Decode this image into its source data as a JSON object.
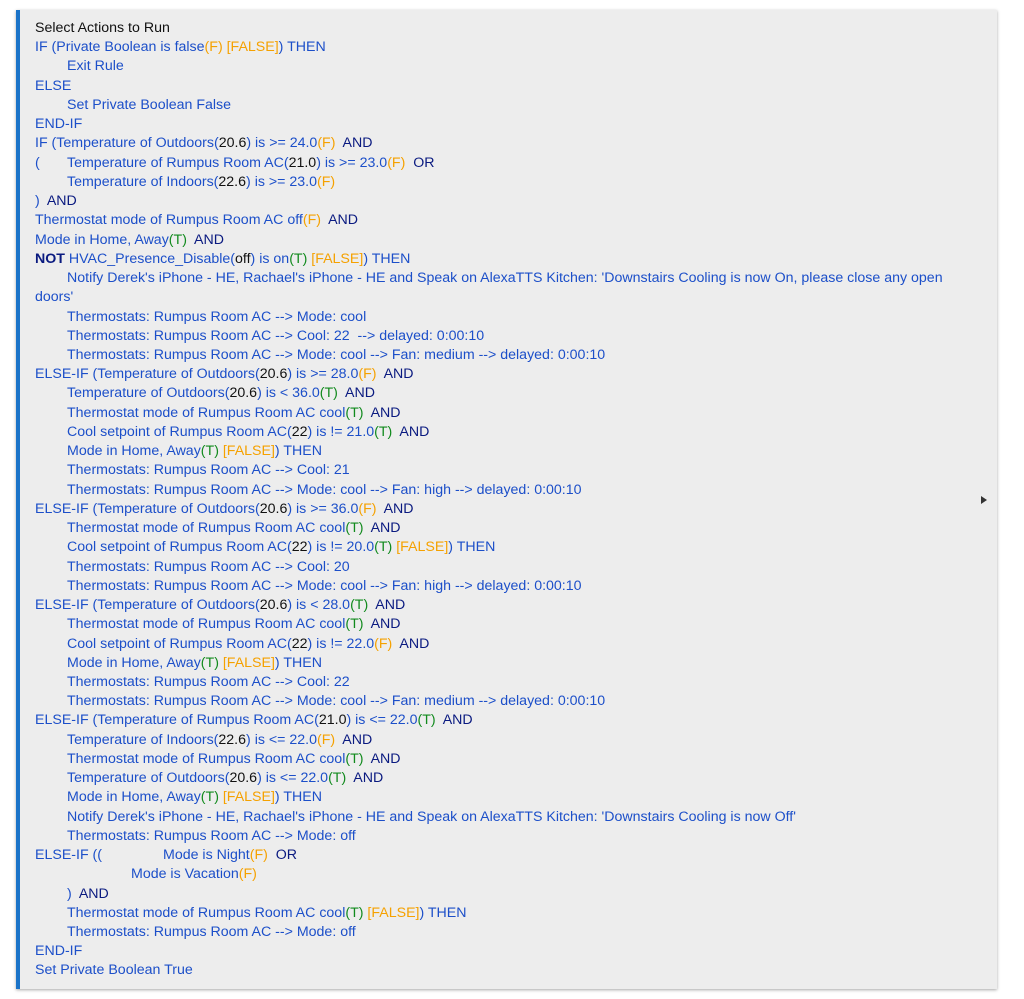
{
  "colors": {
    "blue": "#1c4fc9",
    "navy": "#0a1a80",
    "orange": "#f5a100",
    "green": "#118a1d",
    "black": "#111111",
    "accent": "#1a73c8"
  },
  "title": "Select Actions to Run",
  "lines": [
    [
      [
        "IF (Private Boolean is false",
        "b"
      ],
      [
        "(F)",
        "o"
      ],
      [
        " [FALSE]",
        "o"
      ],
      [
        ") THEN",
        "b"
      ]
    ],
    [
      [
        "\tExit Rule",
        "b"
      ]
    ],
    [
      [
        "ELSE",
        "b"
      ]
    ],
    [
      [
        "\tSet Private Boolean False",
        "b"
      ]
    ],
    [
      [
        "END-IF",
        "b"
      ]
    ],
    [
      [
        "IF (Temperature of Outdoors(",
        "b"
      ],
      [
        "20.6",
        "k"
      ],
      [
        ") is >= 24.0",
        "b"
      ],
      [
        "(F)",
        "o"
      ],
      [
        "  AND",
        "n"
      ]
    ],
    [
      [
        "(\tTemperature of Rumpus Room AC(",
        "b"
      ],
      [
        "21.0",
        "k"
      ],
      [
        ") is >= 23.0",
        "b"
      ],
      [
        "(F)",
        "o"
      ],
      [
        "  OR",
        "n"
      ]
    ],
    [
      [
        "\tTemperature of Indoors(",
        "b"
      ],
      [
        "22.6",
        "k"
      ],
      [
        ") is >= 23.0",
        "b"
      ],
      [
        "(F)",
        "o"
      ]
    ],
    [
      [
        ")",
        "b"
      ],
      [
        "  AND",
        "n"
      ]
    ],
    [
      [
        "Thermostat mode of Rumpus Room AC off",
        "b"
      ],
      [
        "(F)",
        "o"
      ],
      [
        "  AND",
        "n"
      ]
    ],
    [
      [
        "Mode in Home, Away",
        "b"
      ],
      [
        "(T)",
        "g"
      ],
      [
        "  AND",
        "n"
      ]
    ],
    [
      [
        "NOT",
        "n",
        "bold"
      ],
      [
        " HVAC_Presence_Disable(",
        "b"
      ],
      [
        "off",
        "k"
      ],
      [
        ") is on",
        "b"
      ],
      [
        "(T)",
        "g"
      ],
      [
        " [FALSE]",
        "o"
      ],
      [
        ") THEN",
        "b"
      ]
    ],
    [
      [
        "\tNotify Derek's iPhone - HE, Rachael's iPhone - HE and Speak on AlexaTTS Kitchen: 'Downstairs Cooling is now On, please close any open doors'",
        "b"
      ]
    ],
    [
      [
        "\tThermostats: Rumpus Room AC --> Mode: cool",
        "b"
      ]
    ],
    [
      [
        "\tThermostats: Rumpus Room AC --> Cool: 22  --> delayed: 0:00:10",
        "b"
      ]
    ],
    [
      [
        "\tThermostats: Rumpus Room AC --> Mode: cool --> Fan: medium --> delayed: 0:00:10",
        "b"
      ]
    ],
    [
      [
        "ELSE-IF (Temperature of Outdoors(",
        "b"
      ],
      [
        "20.6",
        "k"
      ],
      [
        ") is >= 28.0",
        "b"
      ],
      [
        "(F)",
        "o"
      ],
      [
        "  AND",
        "n"
      ]
    ],
    [
      [
        "\tTemperature of Outdoors(",
        "b"
      ],
      [
        "20.6",
        "k"
      ],
      [
        ") is < 36.0",
        "b"
      ],
      [
        "(T)",
        "g"
      ],
      [
        "  AND",
        "n"
      ]
    ],
    [
      [
        "\tThermostat mode of Rumpus Room AC cool",
        "b"
      ],
      [
        "(T)",
        "g"
      ],
      [
        "  AND",
        "n"
      ]
    ],
    [
      [
        "\tCool setpoint of Rumpus Room AC(",
        "b"
      ],
      [
        "22",
        "k"
      ],
      [
        ") is != 21.0",
        "b"
      ],
      [
        "(T)",
        "g"
      ],
      [
        "  AND",
        "n"
      ]
    ],
    [
      [
        "\tMode in Home, Away",
        "b"
      ],
      [
        "(T)",
        "g"
      ],
      [
        " [FALSE]",
        "o"
      ],
      [
        ") THEN",
        "b"
      ]
    ],
    [
      [
        "\tThermostats: Rumpus Room AC --> Cool: 21",
        "b"
      ]
    ],
    [
      [
        "\tThermostats: Rumpus Room AC --> Mode: cool --> Fan: high --> delayed: 0:00:10",
        "b"
      ]
    ],
    [
      [
        "ELSE-IF (Temperature of Outdoors(",
        "b"
      ],
      [
        "20.6",
        "k"
      ],
      [
        ") is >= 36.0",
        "b"
      ],
      [
        "(F)",
        "o"
      ],
      [
        "  AND",
        "n"
      ]
    ],
    [
      [
        "\tThermostat mode of Rumpus Room AC cool",
        "b"
      ],
      [
        "(T)",
        "g"
      ],
      [
        "  AND",
        "n"
      ]
    ],
    [
      [
        "\tCool setpoint of Rumpus Room AC(",
        "b"
      ],
      [
        "22",
        "k"
      ],
      [
        ") is != 20.0",
        "b"
      ],
      [
        "(T)",
        "g"
      ],
      [
        " [FALSE]",
        "o"
      ],
      [
        ") THEN",
        "b"
      ]
    ],
    [
      [
        "\tThermostats: Rumpus Room AC --> Cool: 20",
        "b"
      ]
    ],
    [
      [
        "\tThermostats: Rumpus Room AC --> Mode: cool --> Fan: high --> delayed: 0:00:10",
        "b"
      ]
    ],
    [
      [
        "ELSE-IF (Temperature of Outdoors(",
        "b"
      ],
      [
        "20.6",
        "k"
      ],
      [
        ") is < 28.0",
        "b"
      ],
      [
        "(T)",
        "g"
      ],
      [
        "  AND",
        "n"
      ]
    ],
    [
      [
        "\tThermostat mode of Rumpus Room AC cool",
        "b"
      ],
      [
        "(T)",
        "g"
      ],
      [
        "  AND",
        "n"
      ]
    ],
    [
      [
        "\tCool setpoint of Rumpus Room AC(",
        "b"
      ],
      [
        "22",
        "k"
      ],
      [
        ") is != 22.0",
        "b"
      ],
      [
        "(F)",
        "o"
      ],
      [
        "  AND",
        "n"
      ]
    ],
    [
      [
        "\tMode in Home, Away",
        "b"
      ],
      [
        "(T)",
        "g"
      ],
      [
        " [FALSE]",
        "o"
      ],
      [
        ") THEN",
        "b"
      ]
    ],
    [
      [
        "\tThermostats: Rumpus Room AC --> Cool: 22",
        "b"
      ]
    ],
    [
      [
        "\tThermostats: Rumpus Room AC --> Mode: cool --> Fan: medium --> delayed: 0:00:10",
        "b"
      ]
    ],
    [
      [
        "ELSE-IF (Temperature of Rumpus Room AC(",
        "b"
      ],
      [
        "21.0",
        "k"
      ],
      [
        ") is <= 22.0",
        "b"
      ],
      [
        "(T)",
        "g"
      ],
      [
        "  AND",
        "n"
      ]
    ],
    [
      [
        "\tTemperature of Indoors(",
        "b"
      ],
      [
        "22.6",
        "k"
      ],
      [
        ") is <= 22.0",
        "b"
      ],
      [
        "(F)",
        "o"
      ],
      [
        "  AND",
        "n"
      ]
    ],
    [
      [
        "\tThermostat mode of Rumpus Room AC cool",
        "b"
      ],
      [
        "(T)",
        "g"
      ],
      [
        "  AND",
        "n"
      ]
    ],
    [
      [
        "\tTemperature of Outdoors(",
        "b"
      ],
      [
        "20.6",
        "k"
      ],
      [
        ") is <= 22.0",
        "b"
      ],
      [
        "(T)",
        "g"
      ],
      [
        "  AND",
        "n"
      ]
    ],
    [
      [
        "\tMode in Home, Away",
        "b"
      ],
      [
        "(T)",
        "g"
      ],
      [
        " [FALSE]",
        "o"
      ],
      [
        ") THEN",
        "b"
      ]
    ],
    [
      [
        "\tNotify Derek's iPhone - HE, Rachael's iPhone - HE and Speak on AlexaTTS Kitchen: 'Downstairs Cooling is now Off'",
        "b"
      ]
    ],
    [
      [
        "\tThermostats: Rumpus Room AC --> Mode: off",
        "b"
      ]
    ],
    [
      [
        "ELSE-IF ((\t\tMode is Night",
        "b"
      ],
      [
        "(F)",
        "o"
      ],
      [
        "  OR",
        "n"
      ]
    ],
    [
      [
        "\t\t\tMode is Vacation",
        "b"
      ],
      [
        "(F)",
        "o"
      ]
    ],
    [
      [
        "\t)",
        "b"
      ],
      [
        "  AND",
        "n"
      ]
    ],
    [
      [
        "\tThermostat mode of Rumpus Room AC cool",
        "b"
      ],
      [
        "(T)",
        "g"
      ],
      [
        " [FALSE]",
        "o"
      ],
      [
        ") THEN",
        "b"
      ]
    ],
    [
      [
        "\tThermostats: Rumpus Room AC --> Mode: off",
        "b"
      ]
    ],
    [
      [
        "END-IF",
        "b"
      ]
    ],
    [
      [
        "Set Private Boolean True",
        "b"
      ]
    ]
  ]
}
